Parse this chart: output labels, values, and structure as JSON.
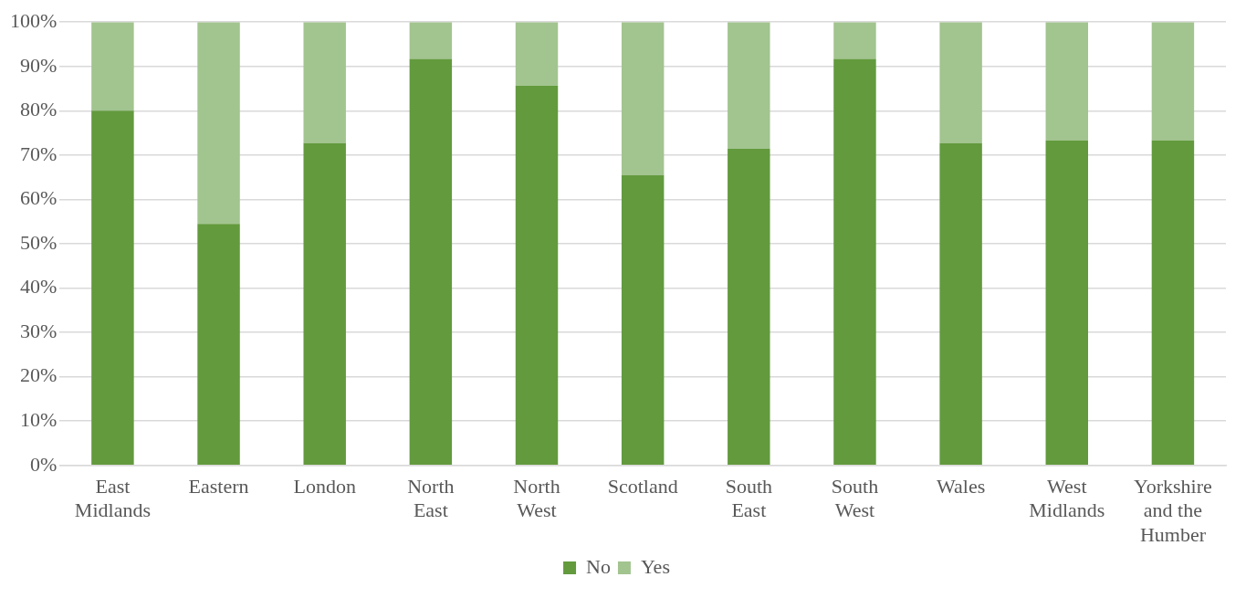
{
  "chart_data": {
    "type": "bar",
    "stacked": true,
    "categories": [
      "East Midlands",
      "Eastern",
      "London",
      "North East",
      "North West",
      "Scotland",
      "South East",
      "South West",
      "Wales",
      "West Midlands",
      "Yorkshire and the Humber"
    ],
    "series": [
      {
        "name": "No",
        "color": "#629a3d",
        "values": [
          80,
          54.5,
          72.7,
          91.7,
          85.7,
          65.5,
          71.4,
          91.7,
          72.7,
          73.3,
          73.3
        ]
      },
      {
        "name": "Yes",
        "color": "#a2c48f",
        "values": [
          20,
          45.5,
          27.3,
          8.3,
          14.3,
          34.5,
          28.6,
          8.3,
          27.3,
          26.7,
          26.7
        ]
      }
    ],
    "ylim": [
      0,
      100
    ],
    "yticks": [
      {
        "value": 0,
        "label": "0%"
      },
      {
        "value": 10,
        "label": "10%"
      },
      {
        "value": 20,
        "label": "20%"
      },
      {
        "value": 30,
        "label": "30%"
      },
      {
        "value": 40,
        "label": "40%"
      },
      {
        "value": 50,
        "label": "50%"
      },
      {
        "value": 60,
        "label": "60%"
      },
      {
        "value": 70,
        "label": "70%"
      },
      {
        "value": 80,
        "label": "80%"
      },
      {
        "value": 90,
        "label": "90%"
      },
      {
        "value": 100,
        "label": "100%"
      }
    ],
    "grid": "y",
    "legend": "bottom"
  }
}
